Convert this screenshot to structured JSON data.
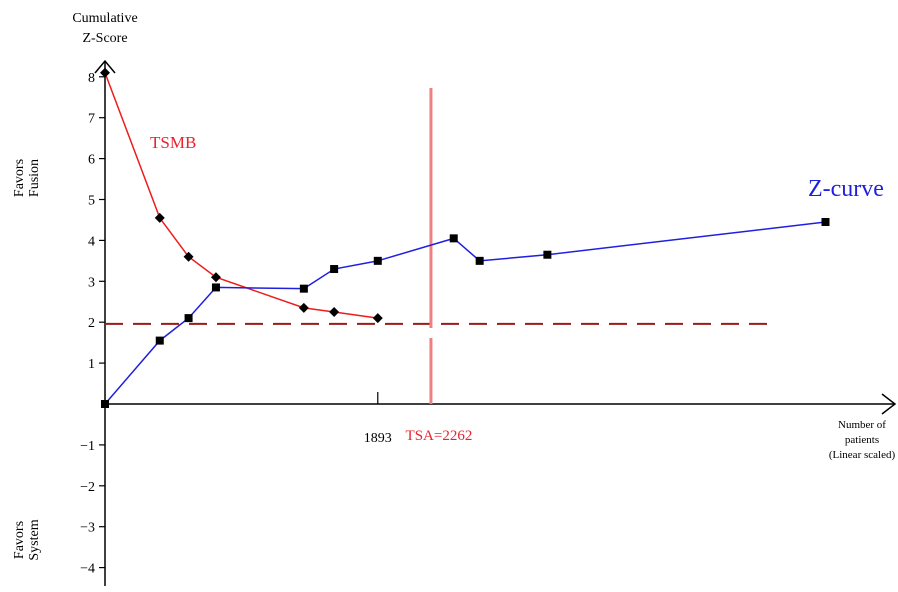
{
  "chart_data": {
    "type": "line",
    "y_axis_title_line1": "Cumulative",
    "y_axis_title_line2": "Z-Score",
    "upper_region_line1": "Favors",
    "upper_region_line2": "Fusion",
    "lower_region_line1": "Favors",
    "lower_region_line2": "System",
    "x_axis_title_line1": "Number of",
    "x_axis_title_line2": "patients",
    "x_axis_title_line3": "(Linear scaled)",
    "y_ticks": [
      {
        "value": 8,
        "label": "8"
      },
      {
        "value": 7,
        "label": "7"
      },
      {
        "value": 6,
        "label": "6"
      },
      {
        "value": 5,
        "label": "5"
      },
      {
        "value": 4,
        "label": "4"
      },
      {
        "value": 3,
        "label": "3"
      },
      {
        "value": 2,
        "label": "2"
      },
      {
        "value": 1,
        "label": "1"
      },
      {
        "value": -1,
        "label": "−1"
      },
      {
        "value": -2,
        "label": "−2"
      },
      {
        "value": -3,
        "label": "−3"
      },
      {
        "value": -4,
        "label": "−4"
      }
    ],
    "x_ticks": [
      {
        "value": 1893,
        "label": "1893"
      }
    ],
    "ylim": [
      -4.5,
      8.2
    ],
    "xlim": [
      0,
      5000
    ],
    "series": [
      {
        "name": "TSMB",
        "color": "#ee1c1c",
        "marker": "diamond",
        "points": [
          [
            0,
            8.1
          ],
          [
            380,
            4.55
          ],
          [
            580,
            3.6
          ],
          [
            770,
            3.1
          ],
          [
            1380,
            2.35
          ],
          [
            1590,
            2.25
          ],
          [
            1893,
            2.1
          ]
        ]
      },
      {
        "name": "Z-curve",
        "color": "#1f1fe0",
        "marker": "square",
        "points": [
          [
            0,
            0
          ],
          [
            380,
            1.55
          ],
          [
            580,
            2.1
          ],
          [
            770,
            2.85
          ],
          [
            1380,
            2.82
          ],
          [
            1590,
            3.3
          ],
          [
            1893,
            3.5
          ],
          [
            2420,
            4.05
          ],
          [
            2600,
            3.5
          ],
          [
            3070,
            3.65
          ],
          [
            5000,
            4.45
          ]
        ]
      }
    ],
    "reference_line": {
      "y": 1.96,
      "color": "#9b1a1a",
      "style": "dashed",
      "x_end": 4600
    },
    "tsa_line": {
      "x": 2262,
      "label": "TSA=2262",
      "color": "#f08080"
    },
    "label_color": "#e8222e"
  }
}
